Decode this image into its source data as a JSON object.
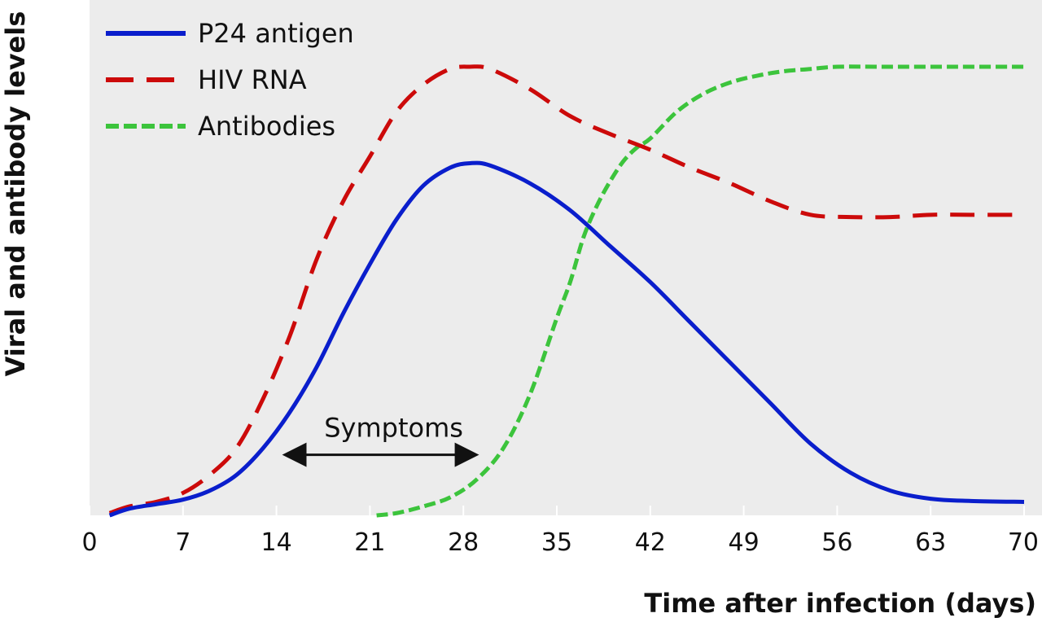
{
  "chart_data": {
    "type": "line",
    "title": "",
    "xlabel": "Time after infection (days)",
    "ylabel": "Viral and antibody levels",
    "xlim": [
      0,
      70
    ],
    "ylim": [
      0,
      100
    ],
    "x_ticks": [
      0,
      7,
      14,
      21,
      28,
      35,
      42,
      49,
      56,
      63,
      70
    ],
    "grid": false,
    "legend_position": "top-left",
    "series": [
      {
        "name": "P24 antigen",
        "color": "#0a1ecc",
        "dash": "solid",
        "x": [
          1.5,
          3,
          5,
          7,
          9,
          11,
          13,
          15,
          17,
          19,
          21,
          23,
          25,
          27,
          28.5,
          30,
          33,
          36,
          39,
          42,
          45,
          48,
          51,
          54,
          57,
          60,
          63,
          66,
          70
        ],
        "y": [
          0,
          1.5,
          2.5,
          3.5,
          5.5,
          9,
          15,
          23,
          33,
          45,
          56,
          66,
          73.5,
          77.5,
          78.5,
          78,
          74,
          68,
          60,
          52,
          43,
          34,
          25,
          16,
          9.5,
          5.5,
          3.7,
          3.2,
          3
        ]
      },
      {
        "name": "HIV RNA",
        "color": "#cc0a0a",
        "dash": "dashed",
        "x": [
          1.5,
          3,
          5,
          7,
          9,
          11,
          13,
          15,
          17,
          19,
          21,
          23,
          25,
          27,
          28.5,
          30,
          33,
          36,
          39,
          42,
          45,
          48,
          51,
          54,
          57,
          60,
          63,
          66,
          70
        ],
        "y": [
          0.5,
          2,
          3,
          5,
          9,
          15,
          26,
          40,
          57,
          70,
          80,
          90,
          96,
          99.5,
          100,
          99.5,
          95,
          89,
          85,
          81.5,
          77.5,
          74,
          70,
          67,
          66.5,
          66.5,
          67,
          67,
          67
        ]
      },
      {
        "name": "Antibodies",
        "color": "#3cc43c",
        "dash": "dotted",
        "x": [
          21.5,
          23,
          25,
          27,
          29,
          31,
          33,
          35,
          36,
          37,
          38,
          39,
          40,
          41,
          42,
          44,
          46,
          48,
          50,
          52,
          54,
          56,
          60,
          65,
          70
        ],
        "y": [
          0,
          0.5,
          2,
          4,
          8,
          15,
          27,
          44,
          52,
          62,
          69,
          74.5,
          79,
          82,
          84,
          90,
          94,
          96.5,
          98,
          99,
          99.5,
          100,
          100,
          100,
          100
        ]
      }
    ],
    "annotations": [
      {
        "text": "Symptoms",
        "from_x": 14,
        "to_x": 29,
        "y": 13.5
      }
    ]
  }
}
